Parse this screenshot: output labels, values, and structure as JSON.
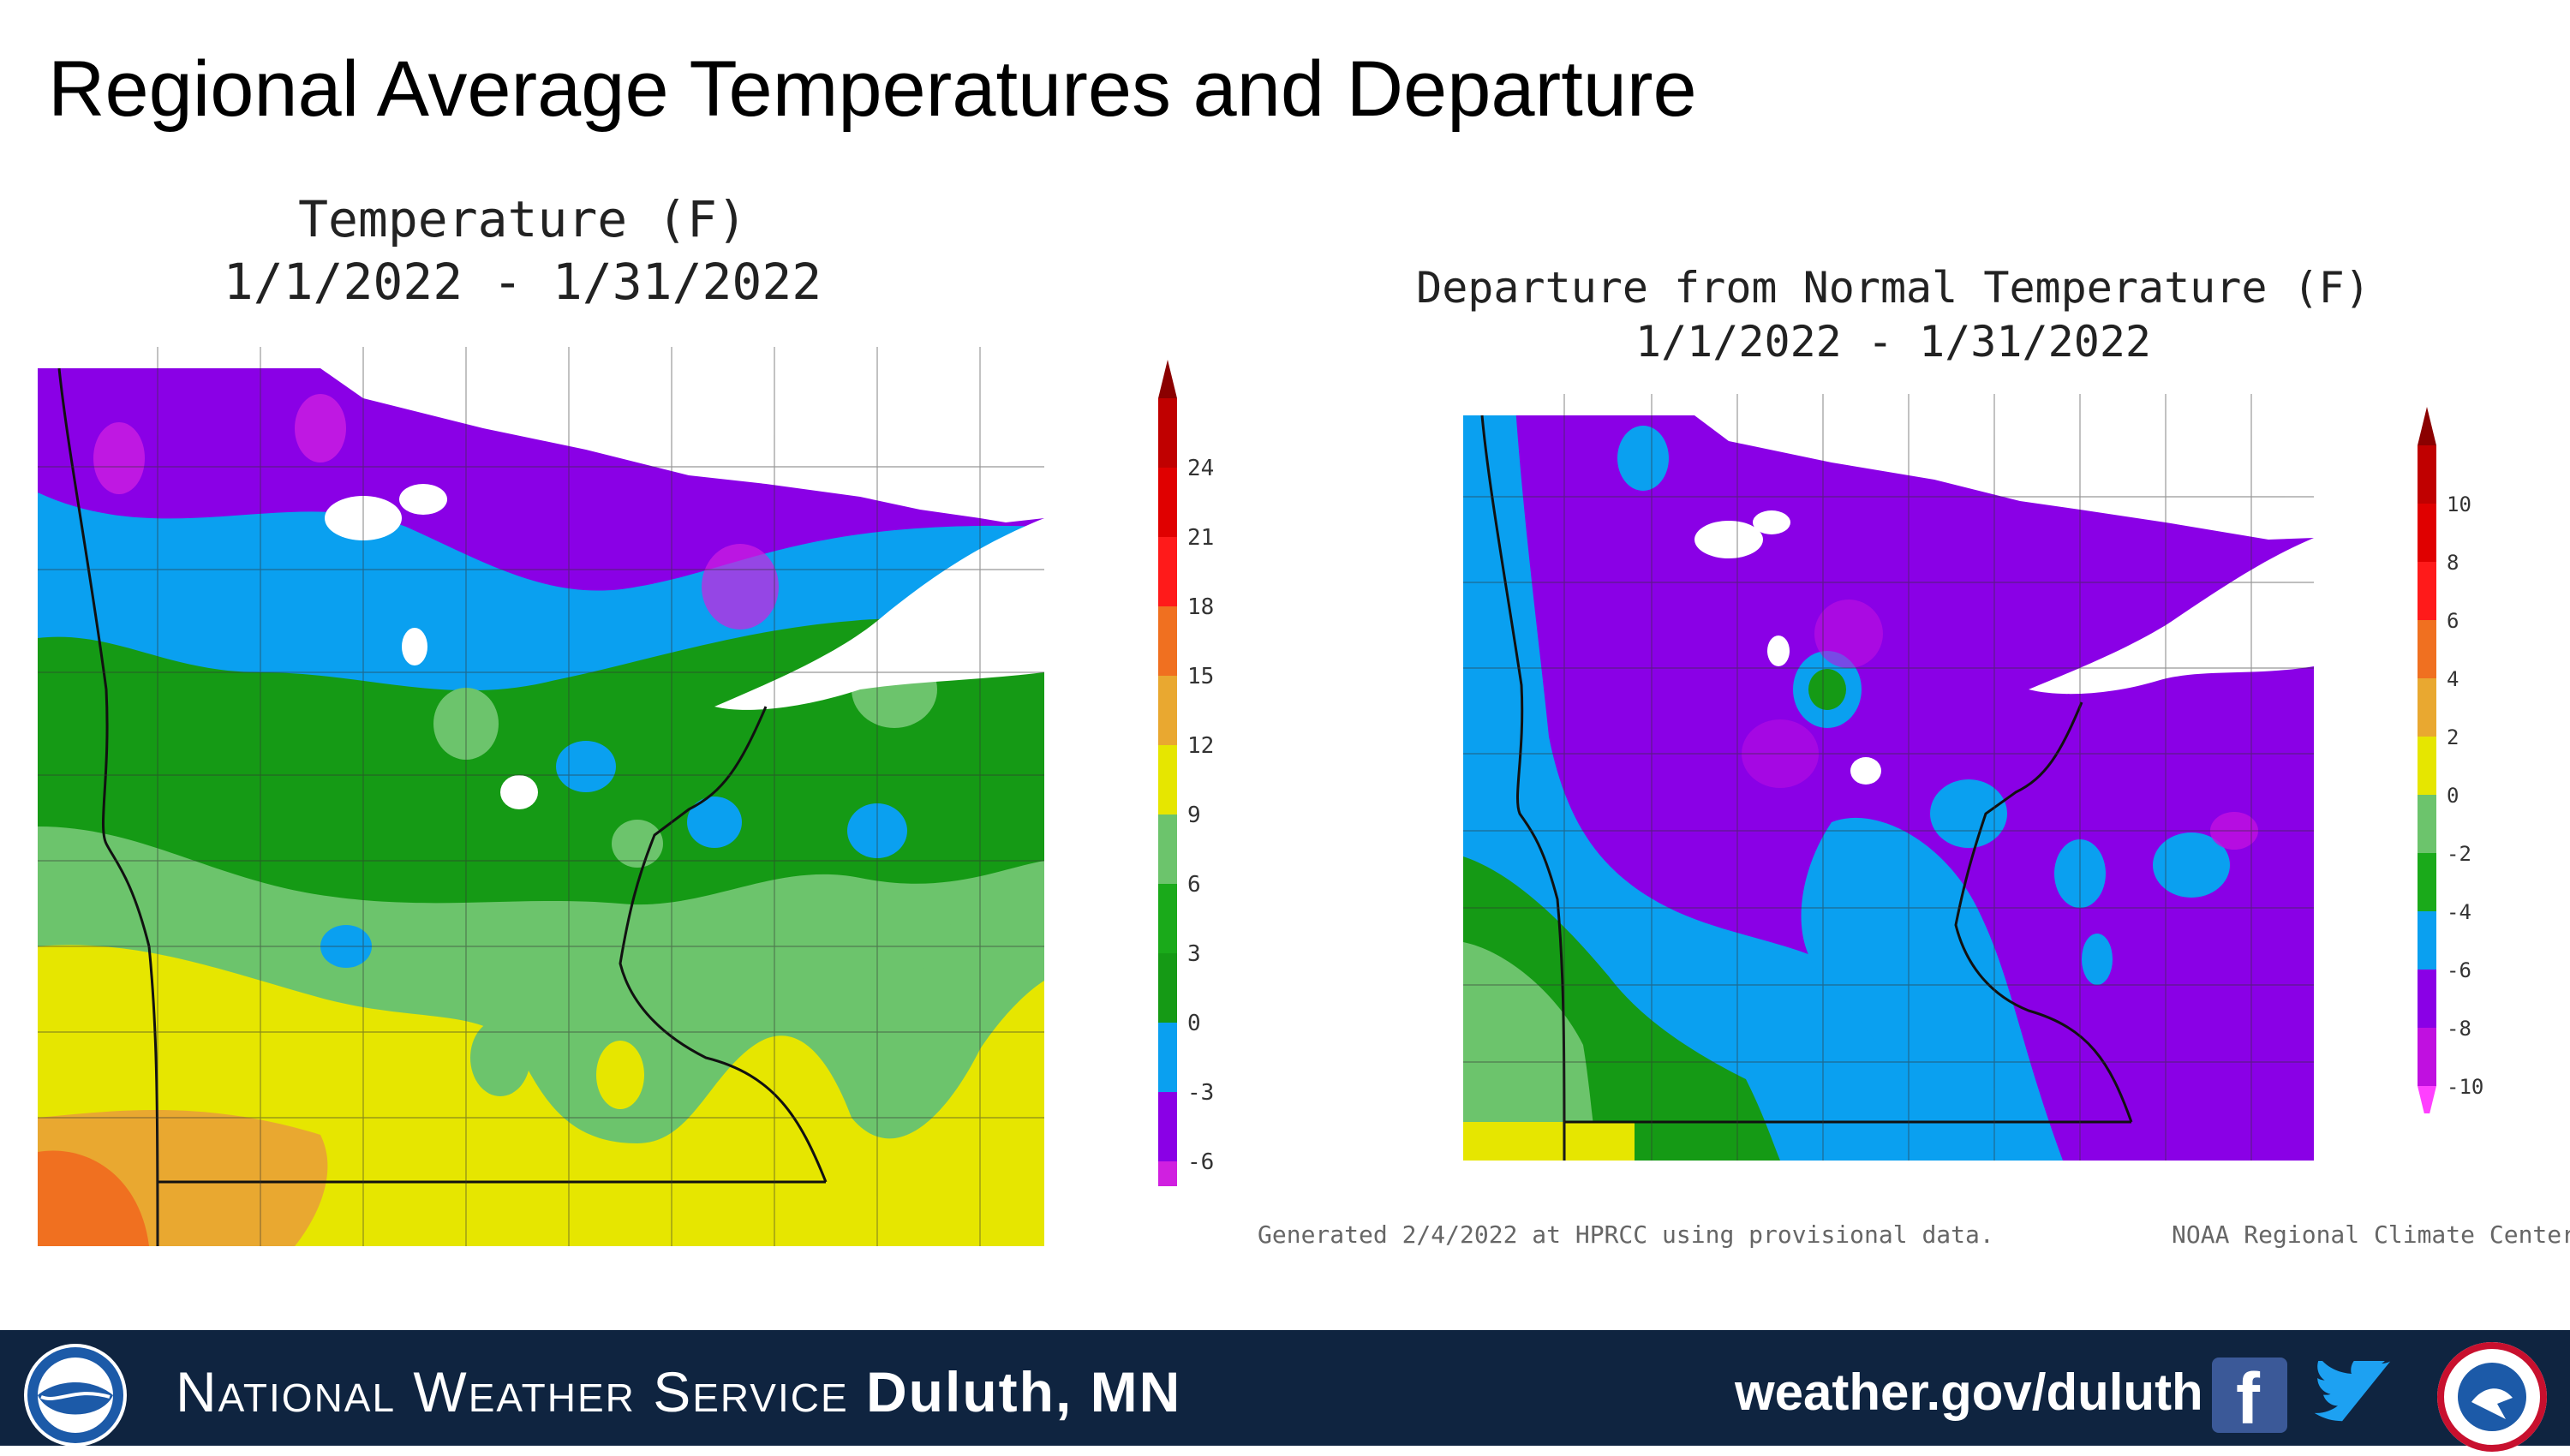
{
  "slide": {
    "title": "Regional Average Temperatures and Departure"
  },
  "map_left": {
    "title_line1": "Temperature (F)",
    "title_line2": "1/1/2022 - 1/31/2022",
    "legend": {
      "labels": [
        "24",
        "21",
        "18",
        "15",
        "12",
        "9",
        "6",
        "3",
        "0",
        "-3",
        "-6"
      ],
      "colors": [
        "#8b0000",
        "#c00000",
        "#e00000",
        "#ff1a1a",
        "#f07020",
        "#e9a830",
        "#e6e600",
        "#6cc46c",
        "#1aaa1a",
        "#159a15",
        "#0aa0f0",
        "#8a00e6",
        "#d020e0",
        "#ff40ff"
      ]
    }
  },
  "map_right": {
    "title_line1": "Departure from Normal Temperature (F)",
    "title_line2": "1/1/2022 - 1/31/2022",
    "legend": {
      "labels": [
        "10",
        "8",
        "6",
        "4",
        "2",
        "0",
        "-2",
        "-4",
        "-6",
        "-8",
        "-10"
      ],
      "colors": [
        "#8b0000",
        "#c00000",
        "#e00000",
        "#ff1a1a",
        "#f07020",
        "#e9a830",
        "#e6e600",
        "#6cc46c",
        "#1aaa1a",
        "#0aa0f0",
        "#8a00e6",
        "#c010e0",
        "#ff40ff"
      ]
    }
  },
  "footnotes": {
    "generated": "Generated 2/4/2022 at HPRCC using provisional data.",
    "source": "NOAA Regional Climate Centers"
  },
  "footer": {
    "agency_prefix": "National Weather Service",
    "office": "Duluth, MN",
    "url": "weather.gov/duluth",
    "colors": {
      "background": "#0f2440"
    },
    "icons": [
      "noaa-logo",
      "facebook-icon",
      "twitter-icon",
      "nws-seal"
    ]
  }
}
